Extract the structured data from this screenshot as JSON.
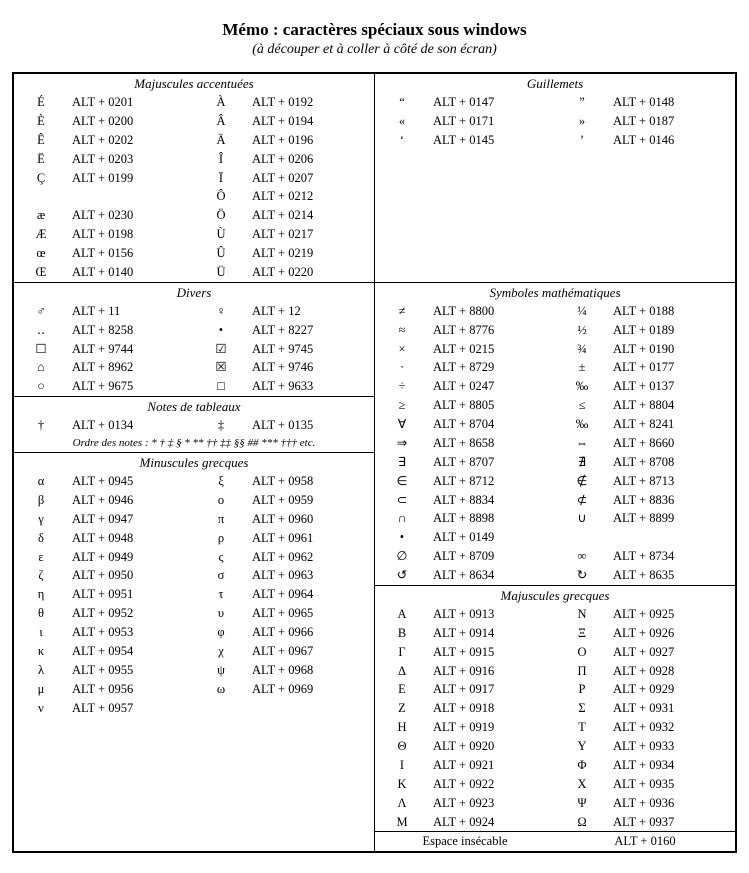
{
  "title": "Mémo : caractères spéciaux sous windows",
  "subtitle": "(à découper et à coller à côté de son écran)",
  "colors": {
    "text": "#000000",
    "background": "#ffffff",
    "border": "#000000"
  },
  "fonts": {
    "body": "serif",
    "title_size_pt": 17,
    "body_size_pt": 13
  },
  "sections": {
    "maj_acc": {
      "title": "Majuscules accentuées",
      "rows": [
        [
          "É",
          "ALT + 0201",
          "À",
          "ALT + 0192"
        ],
        [
          "È",
          "ALT + 0200",
          "Â",
          "ALT + 0194"
        ],
        [
          "Ê",
          "ALT + 0202",
          "Ä",
          "ALT + 0196"
        ],
        [
          "Ë",
          "ALT + 0203",
          "Î",
          "ALT + 0206"
        ],
        [
          "Ç",
          "ALT + 0199",
          "Ï",
          "ALT + 0207"
        ],
        [
          "",
          "",
          "Ô",
          "ALT + 0212"
        ],
        [
          "æ",
          "ALT + 0230",
          "Ö",
          "ALT + 0214"
        ],
        [
          "Æ",
          "ALT + 0198",
          "Ù",
          "ALT + 0217"
        ],
        [
          "œ",
          "ALT + 0156",
          "Û",
          "ALT + 0219"
        ],
        [
          "Œ",
          "ALT + 0140",
          "Ü",
          "ALT + 0220"
        ]
      ]
    },
    "divers": {
      "title": "Divers",
      "rows": [
        [
          "♂",
          "ALT + 11",
          "♀",
          "ALT + 12"
        ],
        [
          "‥",
          "ALT + 8258",
          "•",
          "ALT + 8227"
        ],
        [
          "☐",
          "ALT + 9744",
          "☑",
          "ALT + 9745"
        ],
        [
          "⌂",
          "ALT + 8962",
          "☒",
          "ALT + 9746"
        ],
        [
          "○",
          "ALT + 9675",
          "□",
          "ALT + 9633"
        ]
      ]
    },
    "notes": {
      "title": "Notes de tableaux",
      "rows": [
        [
          "†",
          "ALT + 0134",
          "‡",
          "ALT + 0135"
        ]
      ],
      "order": "Ordre des notes : * † ‡ § * ** †† ‡‡ §§ ## *** ††† etc."
    },
    "min_grec": {
      "title": "Minuscules grecques",
      "rows": [
        [
          "α",
          "ALT + 0945",
          "ξ",
          "ALT + 0958"
        ],
        [
          "β",
          "ALT + 0946",
          "ο",
          "ALT + 0959"
        ],
        [
          "γ",
          "ALT + 0947",
          "π",
          "ALT + 0960"
        ],
        [
          "δ",
          "ALT + 0948",
          "ρ",
          "ALT + 0961"
        ],
        [
          "ε",
          "ALT + 0949",
          "ς",
          "ALT + 0962"
        ],
        [
          "ζ",
          "ALT + 0950",
          "σ",
          "ALT + 0963"
        ],
        [
          "η",
          "ALT + 0951",
          "τ",
          "ALT + 0964"
        ],
        [
          "θ",
          "ALT + 0952",
          "υ",
          "ALT + 0965"
        ],
        [
          "ι",
          "ALT + 0953",
          "φ",
          "ALT + 0966"
        ],
        [
          "κ",
          "ALT + 0954",
          "χ",
          "ALT + 0967"
        ],
        [
          "λ",
          "ALT + 0955",
          "ψ",
          "ALT + 0968"
        ],
        [
          "μ",
          "ALT + 0956",
          "ω",
          "ALT + 0969"
        ],
        [
          "ν",
          "ALT + 0957",
          "",
          ""
        ]
      ]
    },
    "guillemets": {
      "title": "Guillemets",
      "rows": [
        [
          "“",
          "ALT + 0147",
          "”",
          "ALT + 0148"
        ],
        [
          "«",
          "ALT + 0171",
          "»",
          "ALT + 0187"
        ],
        [
          "‘",
          "ALT + 0145",
          "’",
          "ALT + 0146"
        ]
      ]
    },
    "math": {
      "title": "Symboles mathématiques",
      "rows": [
        [
          "≠",
          "ALT + 8800",
          "¼",
          "ALT + 0188"
        ],
        [
          "≈",
          "ALT + 8776",
          "½",
          "ALT + 0189"
        ],
        [
          "×",
          "ALT + 0215",
          "¾",
          "ALT + 0190"
        ],
        [
          "∙",
          "ALT + 8729",
          "±",
          "ALT + 0177"
        ],
        [
          "÷",
          "ALT + 0247",
          "‰",
          "ALT + 0137"
        ],
        [
          "≥",
          "ALT + 8805",
          "≤",
          "ALT + 8804"
        ],
        [
          "∀",
          "ALT + 8704",
          "‰",
          "ALT + 8241"
        ],
        [
          "⇒",
          "ALT + 8658",
          "⇔",
          "ALT + 8660"
        ],
        [
          "∃",
          "ALT + 8707",
          "∄",
          "ALT + 8708"
        ],
        [
          "∈",
          "ALT + 8712",
          "∉",
          "ALT + 8713"
        ],
        [
          "⊂",
          "ALT + 8834",
          "⊄",
          "ALT + 8836"
        ],
        [
          "∩",
          "ALT + 8898",
          "∪",
          "ALT + 8899"
        ],
        [
          "•",
          "ALT + 0149",
          "",
          ""
        ],
        [
          "∅",
          "ALT + 8709",
          "∞",
          "ALT + 8734"
        ],
        [
          "↺",
          "ALT + 8634",
          "↻",
          "ALT + 8635"
        ]
      ]
    },
    "maj_grec": {
      "title": "Majuscules grecques",
      "rows": [
        [
          "Α",
          "ALT + 0913",
          "Ν",
          "ALT + 0925"
        ],
        [
          "Β",
          "ALT + 0914",
          "Ξ",
          "ALT + 0926"
        ],
        [
          "Γ",
          "ALT + 0915",
          "Ο",
          "ALT + 0927"
        ],
        [
          "Δ",
          "ALT + 0916",
          "Π",
          "ALT + 0928"
        ],
        [
          "Ε",
          "ALT + 0917",
          "Ρ",
          "ALT + 0929"
        ],
        [
          "Ζ",
          "ALT + 0918",
          "Σ",
          "ALT + 0931"
        ],
        [
          "Η",
          "ALT + 0919",
          "Τ",
          "ALT + 0932"
        ],
        [
          "Θ",
          "ALT + 0920",
          "Υ",
          "ALT + 0933"
        ],
        [
          "Ι",
          "ALT + 0921",
          "Φ",
          "ALT + 0934"
        ],
        [
          "Κ",
          "ALT + 0922",
          "Χ",
          "ALT + 0935"
        ],
        [
          "Λ",
          "ALT + 0923",
          "Ψ",
          "ALT + 0936"
        ],
        [
          "Μ",
          "ALT + 0924",
          "Ω",
          "ALT + 0937"
        ]
      ]
    },
    "espace": {
      "label": "Espace insécable",
      "code": "ALT + 0160"
    }
  }
}
